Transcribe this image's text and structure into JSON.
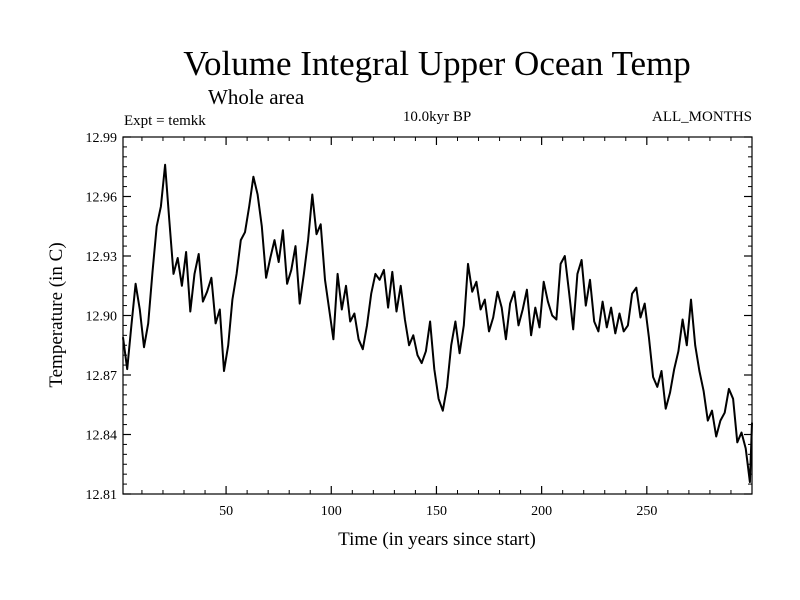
{
  "chart_data": {
    "type": "line",
    "title": "Volume Integral Upper Ocean Temp",
    "subtitle": "Whole area",
    "left_label": "Expt = temkk",
    "center_label": "10.0kyr BP",
    "right_label": "ALL_MONTHS",
    "xlabel": "Time (in years since start)",
    "ylabel": "Temperature (in C)",
    "xlim": [
      1,
      300
    ],
    "ylim": [
      12.81,
      12.99
    ],
    "xticks": [
      50,
      100,
      150,
      200,
      250
    ],
    "yticks": [
      12.81,
      12.84,
      12.87,
      12.9,
      12.93,
      12.96,
      12.99
    ],
    "ytick_labels": [
      "12.81",
      "12.84",
      "12.87",
      "12.90",
      "12.93",
      "12.96",
      "12.99"
    ],
    "grid": false,
    "series": [
      {
        "name": "Temperature",
        "x": [
          1,
          3,
          5,
          7,
          9,
          11,
          13,
          15,
          17,
          19,
          21,
          23,
          25,
          27,
          29,
          31,
          33,
          35,
          37,
          39,
          41,
          43,
          45,
          47,
          49,
          51,
          53,
          55,
          57,
          59,
          61,
          63,
          65,
          67,
          69,
          71,
          73,
          75,
          77,
          79,
          81,
          83,
          85,
          87,
          89,
          91,
          93,
          95,
          97,
          99,
          101,
          103,
          105,
          107,
          109,
          111,
          113,
          115,
          117,
          119,
          121,
          123,
          125,
          127,
          129,
          131,
          133,
          135,
          137,
          139,
          141,
          143,
          145,
          147,
          149,
          151,
          153,
          155,
          157,
          159,
          161,
          163,
          165,
          167,
          169,
          171,
          173,
          175,
          177,
          179,
          181,
          183,
          185,
          187,
          189,
          191,
          193,
          195,
          197,
          199,
          201,
          203,
          205,
          207,
          209,
          211,
          213,
          215,
          217,
          219,
          221,
          223,
          225,
          227,
          229,
          231,
          233,
          235,
          237,
          239,
          241,
          243,
          245,
          247,
          249,
          251,
          253,
          255,
          257,
          259,
          261,
          263,
          265,
          267,
          269,
          271,
          273,
          275,
          277,
          279,
          281,
          283,
          285,
          287,
          289,
          291,
          293,
          295,
          297,
          299,
          300
        ],
        "values": [
          12.889,
          12.873,
          12.895,
          12.916,
          12.903,
          12.884,
          12.896,
          12.922,
          12.945,
          12.955,
          12.976,
          12.948,
          12.921,
          12.929,
          12.915,
          12.932,
          12.902,
          12.921,
          12.931,
          12.907,
          12.912,
          12.919,
          12.896,
          12.903,
          12.872,
          12.885,
          12.908,
          12.921,
          12.938,
          12.942,
          12.955,
          12.97,
          12.961,
          12.945,
          12.919,
          12.929,
          12.938,
          12.927,
          12.943,
          12.916,
          12.923,
          12.935,
          12.906,
          12.921,
          12.938,
          12.961,
          12.941,
          12.946,
          12.918,
          12.903,
          12.888,
          12.921,
          12.903,
          12.915,
          12.897,
          12.901,
          12.888,
          12.883,
          12.895,
          12.911,
          12.921,
          12.918,
          12.923,
          12.904,
          12.922,
          12.902,
          12.915,
          12.898,
          12.885,
          12.89,
          12.88,
          12.876,
          12.882,
          12.897,
          12.873,
          12.858,
          12.852,
          12.864,
          12.885,
          12.897,
          12.881,
          12.895,
          12.926,
          12.912,
          12.917,
          12.903,
          12.908,
          12.892,
          12.899,
          12.912,
          12.904,
          12.888,
          12.906,
          12.912,
          12.895,
          12.903,
          12.913,
          12.89,
          12.904,
          12.894,
          12.917,
          12.907,
          12.9,
          12.898,
          12.926,
          12.93,
          12.912,
          12.893,
          12.921,
          12.928,
          12.905,
          12.918,
          12.897,
          12.892,
          12.907,
          12.894,
          12.904,
          12.891,
          12.901,
          12.892,
          12.895,
          12.911,
          12.914,
          12.899,
          12.906,
          12.889,
          12.869,
          12.864,
          12.872,
          12.853,
          12.861,
          12.873,
          12.882,
          12.898,
          12.885,
          12.908,
          12.885,
          12.872,
          12.862,
          12.847,
          12.852,
          12.839,
          12.847,
          12.851,
          12.863,
          12.858,
          12.836,
          12.841,
          12.833,
          12.816,
          12.846
        ]
      }
    ]
  }
}
